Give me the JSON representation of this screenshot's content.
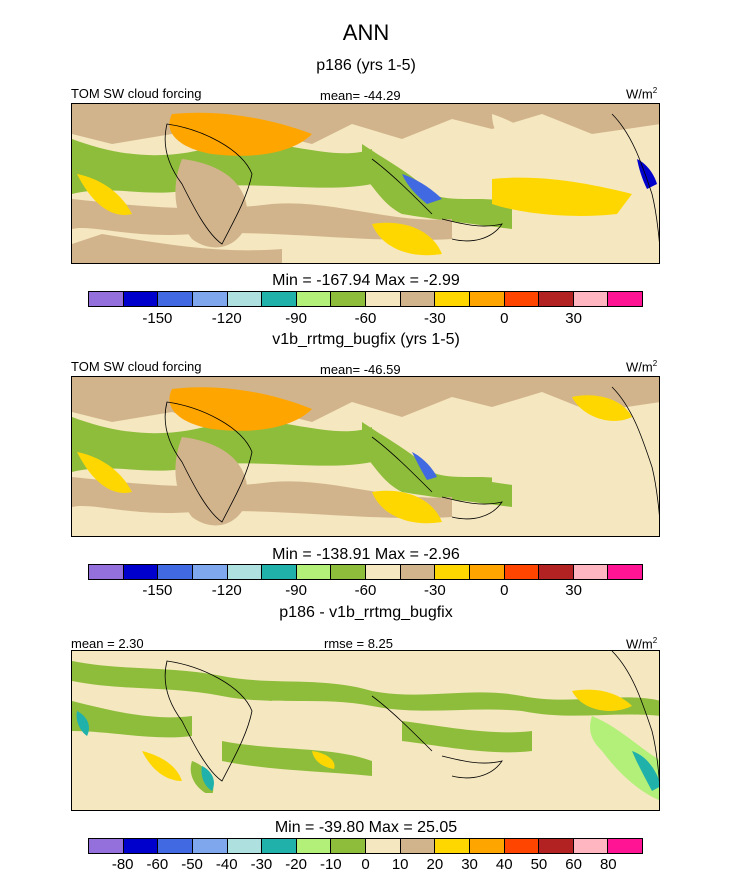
{
  "main_title": "ANN",
  "panels": [
    {
      "title": "p186 (yrs 1-5)",
      "left_label": "TOM SW cloud forcing",
      "center_label": "mean= -44.29",
      "units": "W/m",
      "units_sup": "2",
      "minmax": "Min = -167.94 Max =  -2.99",
      "colorbar_labels": [
        "-150",
        "-120",
        "-90",
        "-60",
        "-30",
        "0",
        "30"
      ]
    },
    {
      "title": "v1b_rrtmg_bugfix (yrs 1-5)",
      "left_label": "TOM SW cloud forcing",
      "center_label": "mean= -46.59",
      "units": "W/m",
      "units_sup": "2",
      "minmax": "Min = -138.91 Max =  -2.96",
      "colorbar_labels": [
        "-150",
        "-120",
        "-90",
        "-60",
        "-30",
        "0",
        "30"
      ]
    },
    {
      "title": "p186 - v1b_rrtmg_bugfix",
      "left_label": "mean =   2.30",
      "center_label": "rmse =   8.25",
      "units": "W/m",
      "units_sup": "2",
      "minmax": "Min = -39.80 Max =  25.05",
      "colorbar_labels": [
        "-80",
        "-60",
        "-50",
        "-40",
        "-30",
        "-20",
        "-10",
        "0",
        "10",
        "20",
        "30",
        "40",
        "50",
        "60",
        "80"
      ]
    }
  ],
  "colors": {
    "palette": [
      "#9370db",
      "#0000cd",
      "#4169e1",
      "#7fa7ee",
      "#afe0e0",
      "#20b2aa",
      "#b3f07a",
      "#8ebd3b",
      "#f5e7c0",
      "#d2b48c",
      "#ffd700",
      "#ffa500",
      "#ff4500",
      "#b22222",
      "#ffb6c1",
      "#ff1493"
    ],
    "land_outline": "#000000"
  }
}
